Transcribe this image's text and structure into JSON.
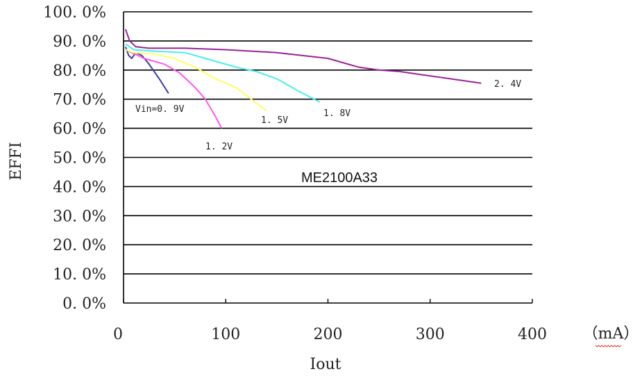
{
  "chart_data": {
    "type": "line",
    "title": "",
    "annotation": "ME2100A33",
    "xlabel": "Iout",
    "ylabel": "EFFI",
    "x_unit": "（mA）",
    "xlim": [
      0,
      400
    ],
    "ylim": [
      0,
      100
    ],
    "x_ticks": [
      "0",
      "100",
      "200",
      "300",
      "400"
    ],
    "y_ticks": [
      "0. 0%",
      "10. 0%",
      "20. 0%",
      "30. 0%",
      "40. 0%",
      "50. 0%",
      "60. 0%",
      "70. 0%",
      "80. 0%",
      "90. 0%",
      "100. 0%"
    ],
    "grid": "horizontal",
    "series": [
      {
        "name": "Vin=0. 9V",
        "color": "#3b3b9e",
        "points": [
          [
            2,
            88
          ],
          [
            5,
            85
          ],
          [
            8,
            84
          ],
          [
            12,
            86
          ],
          [
            18,
            85
          ],
          [
            25,
            82
          ],
          [
            35,
            77
          ],
          [
            44,
            72
          ]
        ]
      },
      {
        "name": "1. 2V",
        "color": "#ff55ee",
        "points": [
          [
            2,
            87
          ],
          [
            8,
            86
          ],
          [
            20,
            84
          ],
          [
            40,
            82
          ],
          [
            55,
            79
          ],
          [
            70,
            74
          ],
          [
            80,
            70
          ],
          [
            90,
            64
          ],
          [
            96,
            60
          ]
        ]
      },
      {
        "name": "1. 5V",
        "color": "#ffff66",
        "points": [
          [
            2,
            87
          ],
          [
            10,
            86
          ],
          [
            30,
            85.5
          ],
          [
            50,
            84
          ],
          [
            70,
            81
          ],
          [
            90,
            77
          ],
          [
            110,
            74
          ],
          [
            125,
            70
          ],
          [
            140,
            66
          ]
        ]
      },
      {
        "name": "1. 8V",
        "color": "#44eeee",
        "points": [
          [
            2,
            89
          ],
          [
            10,
            87
          ],
          [
            30,
            86.5
          ],
          [
            60,
            86
          ],
          [
            80,
            84
          ],
          [
            110,
            81
          ],
          [
            130,
            79.5
          ],
          [
            150,
            77
          ],
          [
            170,
            73
          ],
          [
            192,
            69
          ]
        ]
      },
      {
        "name": "2. 4V",
        "color": "#992299",
        "points": [
          [
            2,
            94
          ],
          [
            6,
            90
          ],
          [
            12,
            88
          ],
          [
            25,
            87.5
          ],
          [
            60,
            87.5
          ],
          [
            100,
            87
          ],
          [
            150,
            86
          ],
          [
            200,
            84
          ],
          [
            230,
            81
          ],
          [
            250,
            80
          ],
          [
            270,
            79.5
          ],
          [
            300,
            78
          ],
          [
            330,
            76.5
          ],
          [
            350,
            75.5
          ]
        ]
      }
    ]
  }
}
